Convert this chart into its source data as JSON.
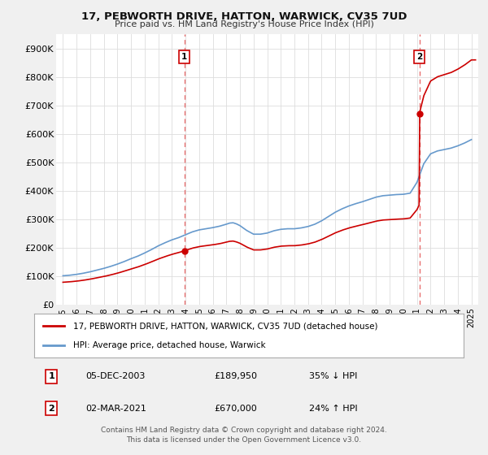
{
  "title": "17, PEBWORTH DRIVE, HATTON, WARWICK, CV35 7UD",
  "subtitle": "Price paid vs. HM Land Registry's House Price Index (HPI)",
  "footer": "Contains HM Land Registry data © Crown copyright and database right 2024.\nThis data is licensed under the Open Government Licence v3.0.",
  "legend_label_red": "17, PEBWORTH DRIVE, HATTON, WARWICK, CV35 7UD (detached house)",
  "legend_label_blue": "HPI: Average price, detached house, Warwick",
  "annotation1_label": "1",
  "annotation1_date": "05-DEC-2003",
  "annotation1_price": "£189,950",
  "annotation1_hpi": "35% ↓ HPI",
  "annotation2_label": "2",
  "annotation2_date": "02-MAR-2021",
  "annotation2_price": "£670,000",
  "annotation2_hpi": "24% ↑ HPI",
  "red_color": "#cc0000",
  "blue_color": "#6699cc",
  "vline_color": "#e87070",
  "ylim": [
    0,
    950000
  ],
  "yticks": [
    0,
    100000,
    200000,
    300000,
    400000,
    500000,
    600000,
    700000,
    800000,
    900000
  ],
  "ytick_labels": [
    "£0",
    "£100K",
    "£200K",
    "£300K",
    "£400K",
    "£500K",
    "£600K",
    "£700K",
    "£800K",
    "£900K"
  ],
  "hpi_years": [
    1995,
    1995.5,
    1996,
    1996.5,
    1997,
    1997.5,
    1998,
    1998.5,
    1999,
    1999.5,
    2000,
    2000.5,
    2001,
    2001.5,
    2002,
    2002.5,
    2003,
    2003.5,
    2004,
    2004.5,
    2005,
    2005.5,
    2006,
    2006.5,
    2007,
    2007.25,
    2007.5,
    2007.75,
    2008,
    2008.5,
    2009,
    2009.5,
    2010,
    2010.5,
    2011,
    2011.5,
    2012,
    2012.5,
    2013,
    2013.5,
    2014,
    2014.5,
    2015,
    2015.5,
    2016,
    2016.5,
    2017,
    2017.5,
    2018,
    2018.5,
    2019,
    2019.5,
    2020,
    2020.5,
    2021,
    2021.5,
    2022,
    2022.5,
    2023,
    2023.5,
    2024,
    2024.5,
    2025
  ],
  "hpi_values": [
    102000,
    104000,
    107000,
    111000,
    116000,
    122000,
    128000,
    135000,
    143000,
    152000,
    162000,
    171000,
    182000,
    194000,
    207000,
    218000,
    228000,
    236000,
    246000,
    256000,
    263000,
    267000,
    271000,
    276000,
    283000,
    287000,
    288000,
    284000,
    278000,
    261000,
    248000,
    248000,
    252000,
    260000,
    265000,
    267000,
    267000,
    270000,
    275000,
    283000,
    295000,
    310000,
    325000,
    337000,
    347000,
    355000,
    362000,
    370000,
    378000,
    383000,
    385000,
    387000,
    388000,
    392000,
    430000,
    495000,
    530000,
    540000,
    545000,
    550000,
    558000,
    568000,
    580000
  ],
  "price_points_x": [
    2003.92,
    2021.17
  ],
  "price_points_y": [
    189950,
    670000
  ],
  "xlim": [
    1994.5,
    2025.5
  ],
  "xtick_years": [
    1995,
    1996,
    1997,
    1998,
    1999,
    2000,
    2001,
    2002,
    2003,
    2004,
    2005,
    2006,
    2007,
    2008,
    2009,
    2010,
    2011,
    2012,
    2013,
    2014,
    2015,
    2016,
    2017,
    2018,
    2019,
    2020,
    2021,
    2022,
    2023,
    2024,
    2025
  ],
  "bg_color": "#f0f0f0",
  "plot_bg_color": "#ffffff"
}
